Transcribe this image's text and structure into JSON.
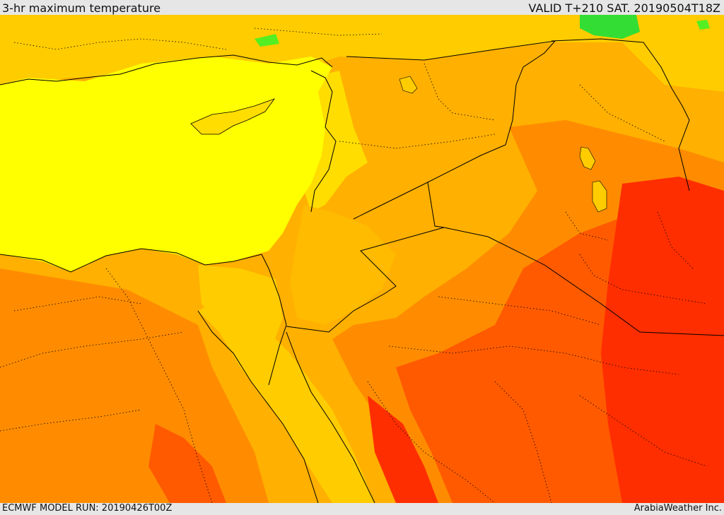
{
  "header": {
    "title": "3-hr maximum temperature",
    "valid": "VALID T+210 SAT. 20190504T18Z"
  },
  "footer": {
    "model_run": "ECMWF MODEL RUN: 20190426T00Z",
    "credit": "ArabiaWeather Inc."
  },
  "colors": {
    "sea_yellow": "#ffff00",
    "light_orange": "#ffdd00",
    "orange": "#ffb000",
    "deep_orange": "#ff8c00",
    "red_orange": "#ff5a00",
    "red": "#ff2e00",
    "green_patch": "#33dd33",
    "border_line": "#000000"
  }
}
